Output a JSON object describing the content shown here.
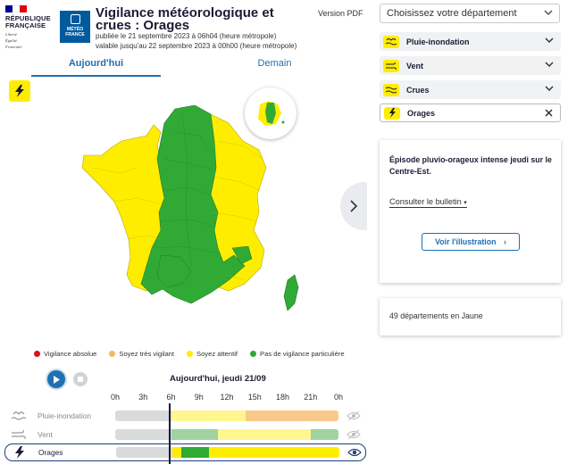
{
  "header": {
    "rf_logo_lines": [
      "RÉPUBLIQUE",
      "FRANÇAISE"
    ],
    "rf_motto": [
      "Liberté",
      "Égalité",
      "Fraternité"
    ],
    "mf_logo": [
      "MÉTÉO",
      "FRANCE"
    ],
    "title": "Vigilance météorologique et crues : Orages",
    "published": "publiée le 21 septembre 2023 à 06h04 (heure métropole)",
    "valid_until": "valable jusqu'au 22 septembre 2023 à 00h00 (heure métropole)",
    "pdf_link": "Version PDF"
  },
  "tabs": [
    {
      "label": "Aujourd'hui",
      "active": true
    },
    {
      "label": "Demain",
      "active": false
    }
  ],
  "legend": [
    {
      "label": "Vigilance absolue",
      "color": "#d6131b"
    },
    {
      "label": "Soyez très vigilant",
      "color": "#f6b860"
    },
    {
      "label": "Soyez attentif",
      "color": "#ffed00"
    },
    {
      "label": "Pas de vigilance particulière",
      "color": "#31aa35"
    }
  ],
  "colors": {
    "yellow": "#ffed00",
    "green": "#31aa35",
    "orange": "#f9c98b",
    "light_yellow": "#fff68f",
    "light_green": "#9fd3a1",
    "grey": "#d9dadc",
    "accent": "#1f6fb3"
  },
  "timeline": {
    "date_label": "Aujourd'hui, jeudi 21/09",
    "hours": [
      "0h",
      "3h",
      "6h",
      "9h",
      "12h",
      "15h",
      "18h",
      "21h",
      "0h"
    ],
    "current_hour": "6h",
    "rows": [
      {
        "label": "Pluie-inondation",
        "icon": "rain-flood-icon",
        "selected": false,
        "segments": [
          {
            "from_h": 0,
            "to_h": 6,
            "level": "past"
          },
          {
            "from_h": 6,
            "to_h": 14,
            "level": "light_yellow"
          },
          {
            "from_h": 14,
            "to_h": 24,
            "level": "orange"
          }
        ]
      },
      {
        "label": "Vent",
        "icon": "wind-icon",
        "selected": false,
        "segments": [
          {
            "from_h": 0,
            "to_h": 6,
            "level": "past"
          },
          {
            "from_h": 6,
            "to_h": 11,
            "level": "light_green"
          },
          {
            "from_h": 11,
            "to_h": 21,
            "level": "light_yellow"
          },
          {
            "from_h": 21,
            "to_h": 24,
            "level": "light_green"
          }
        ]
      },
      {
        "label": "Orages",
        "icon": "lightning-icon",
        "selected": true,
        "segments": [
          {
            "from_h": 0,
            "to_h": 6,
            "level": "past"
          },
          {
            "from_h": 6,
            "to_h": 7,
            "level": "yellow"
          },
          {
            "from_h": 7,
            "to_h": 10,
            "level": "green"
          },
          {
            "from_h": 10,
            "to_h": 24,
            "level": "yellow"
          }
        ]
      }
    ]
  },
  "panel": {
    "department_placeholder": "Choisissez votre département",
    "phenomena": [
      {
        "label": "Pluie-inondation",
        "icon": "rain-flood-icon",
        "icon_color": "#ffed00",
        "selected": false
      },
      {
        "label": "Vent",
        "icon": "wind-icon",
        "icon_color": "#ffed00",
        "selected": false
      },
      {
        "label": "Crues",
        "icon": "flood-icon",
        "icon_color": "#ffed00",
        "selected": false
      },
      {
        "label": "Orages",
        "icon": "lightning-icon",
        "icon_color": "#ffed00",
        "selected": true
      }
    ],
    "episode_text": "Épisode pluvio-orageux intense jeudi sur le Centre-Est.",
    "bulletin_label": "Consulter le bulletin",
    "illustration_button": "Voir l'illustration",
    "departments_count": "49 départements en Jaune"
  }
}
